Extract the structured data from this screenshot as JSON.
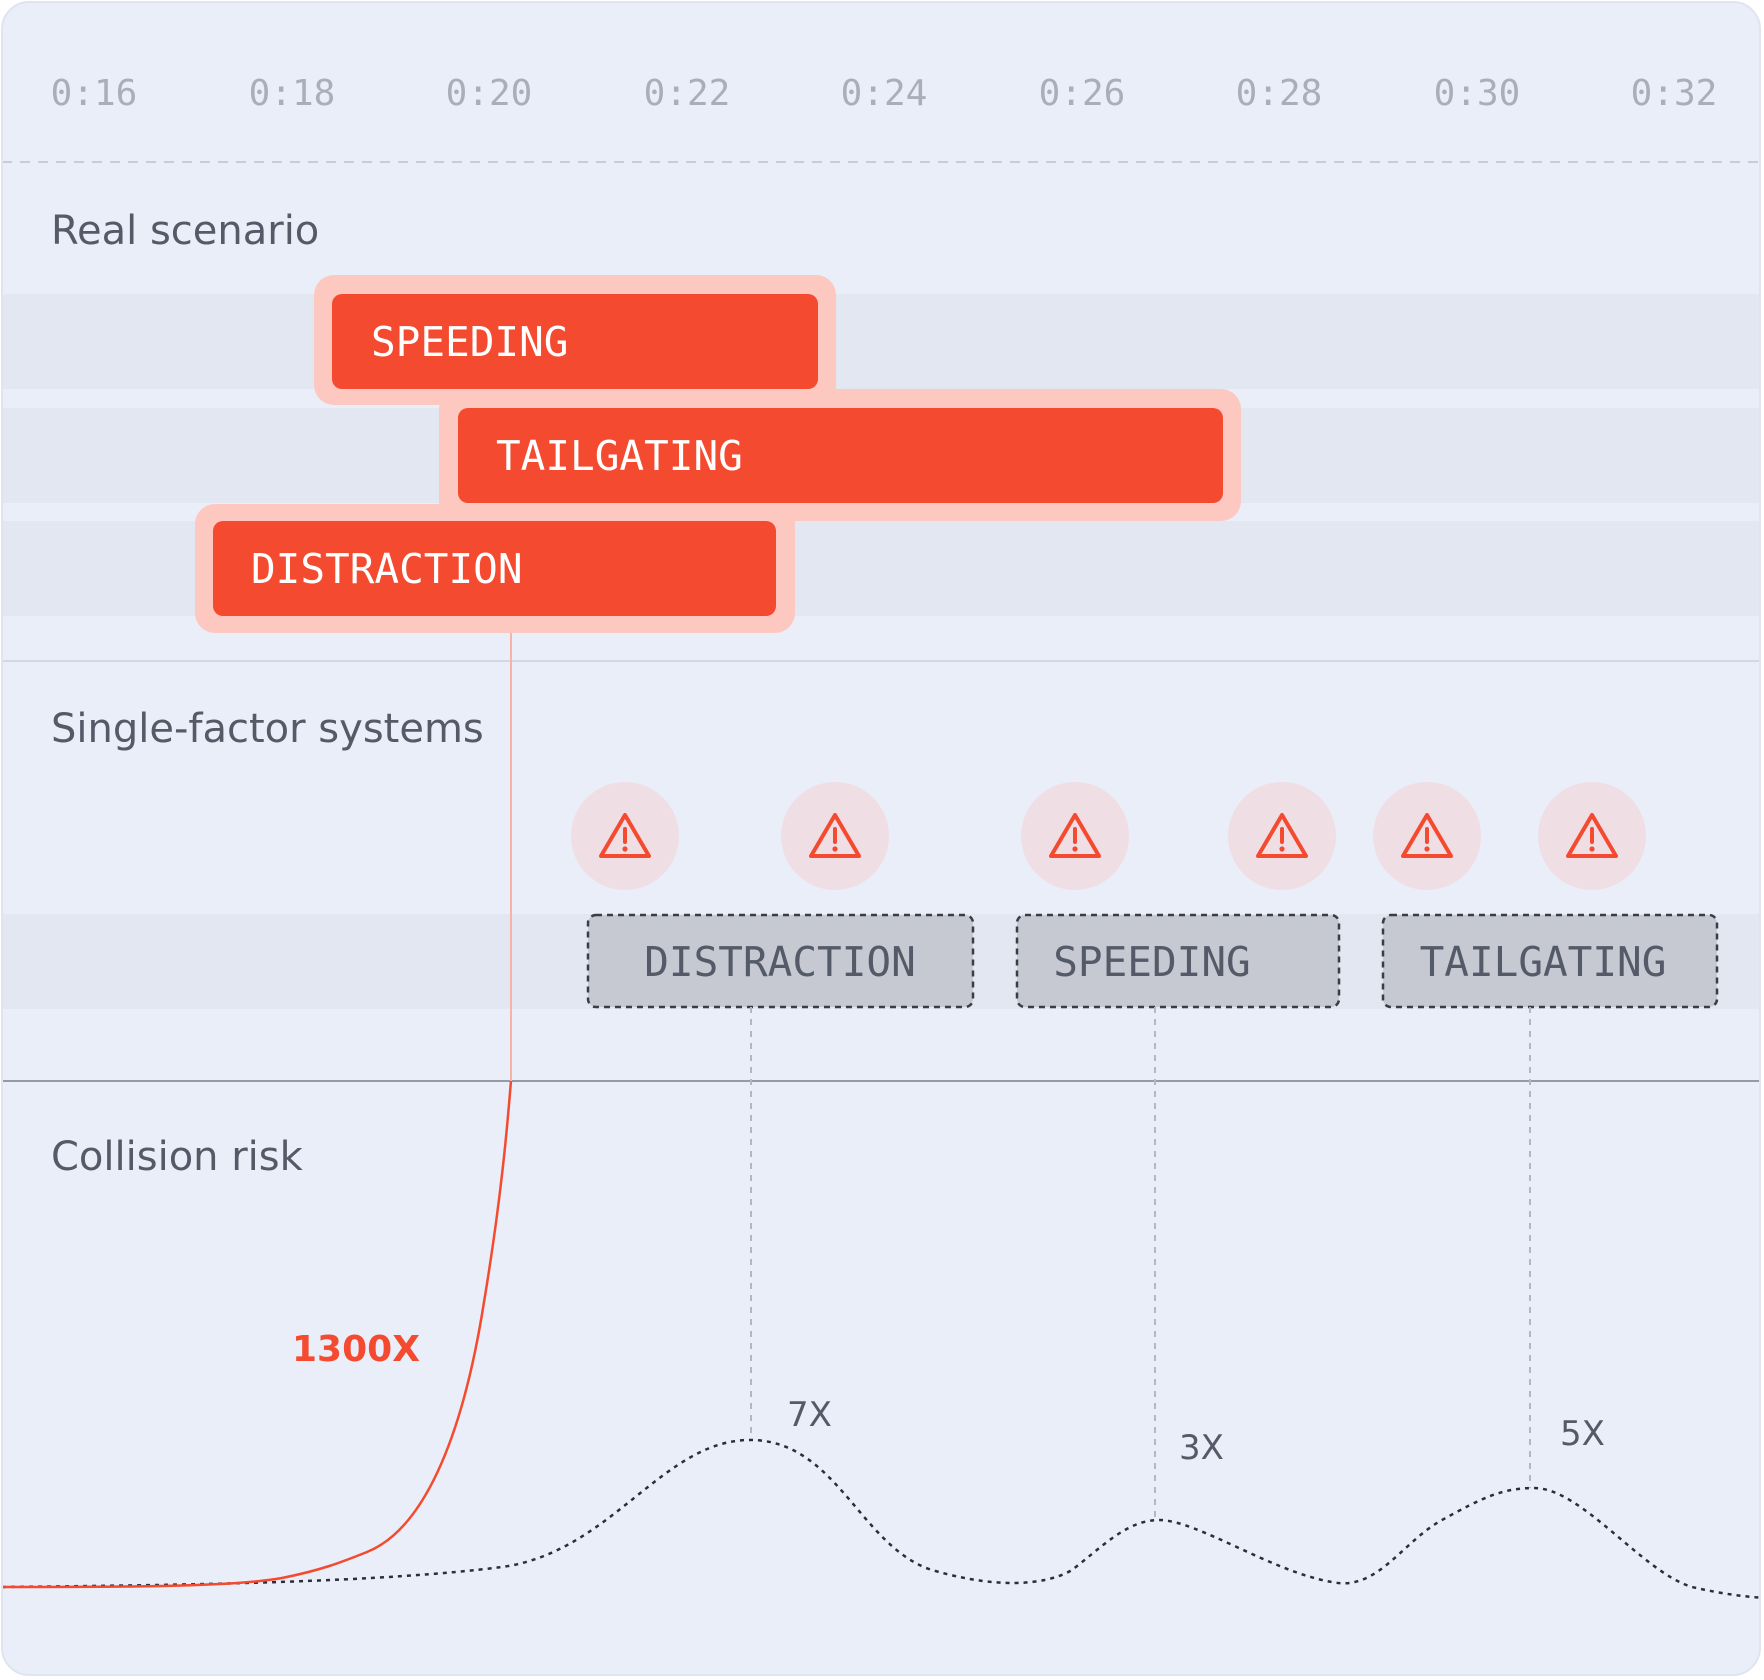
{
  "timeline": {
    "ticks": [
      "0:16",
      "0:18",
      "0:20",
      "0:22",
      "0:24",
      "0:26",
      "0:28",
      "0:30",
      "0:32"
    ]
  },
  "sections": {
    "real_scenario": "Real scenario",
    "single_factor": "Single-factor systems",
    "collision_risk": "Collision risk"
  },
  "real_scenario_events": [
    {
      "label": "SPEEDING",
      "start": "0:19",
      "end": "0:24"
    },
    {
      "label": "TAILGATING",
      "start": "0:20",
      "end": "0:28"
    },
    {
      "label": "DISTRACTION",
      "start": "0:18",
      "end": "0:24"
    }
  ],
  "single_factor_alerts": [
    {
      "label": "DISTRACTION"
    },
    {
      "label": "SPEEDING"
    },
    {
      "label": "TAILGATING"
    }
  ],
  "warning_icon_count": 6,
  "collision_risk": {
    "combined_label": "1300X",
    "single_factor_labels": [
      "7X",
      "3X",
      "5X"
    ]
  },
  "colors": {
    "background": "#eaeef8",
    "accent": "#f44a2f",
    "accent_halo": "#fdc8c0",
    "alert_box": "#c6c8d2",
    "text": "#545a68",
    "tick_text": "#a9aebb"
  }
}
